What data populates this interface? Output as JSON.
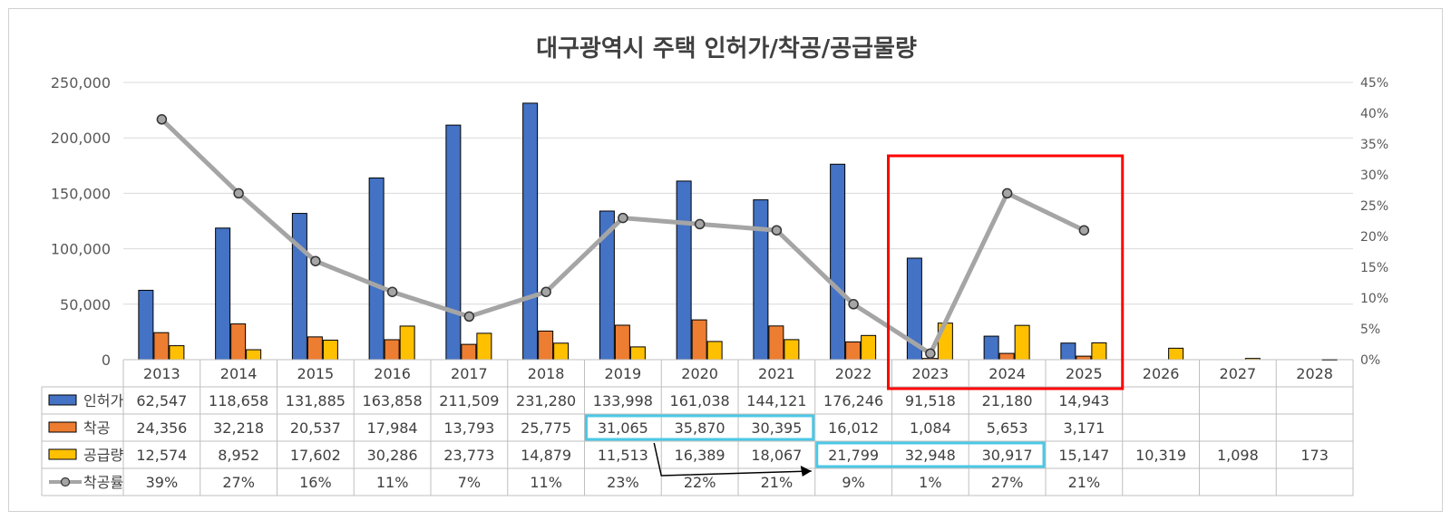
{
  "chart_data": {
    "type": "bar",
    "title": "대구광역시 주택 인허가/착공/공급물량",
    "categories": [
      "2013",
      "2014",
      "2015",
      "2016",
      "2017",
      "2018",
      "2019",
      "2020",
      "2021",
      "2022",
      "2023",
      "2024",
      "2025",
      "2026",
      "2027",
      "2028"
    ],
    "series": [
      {
        "name": "인허가",
        "color": "#4472C4",
        "values": [
          62547,
          118658,
          131885,
          163858,
          211509,
          231280,
          133998,
          161038,
          144121,
          176246,
          91518,
          21180,
          14943,
          null,
          null,
          null
        ],
        "labels": [
          "62,547",
          "118,658",
          "131,885",
          "163,858",
          "211,509",
          "231,280",
          "133,998",
          "161,038",
          "144,121",
          "176,246",
          "91,518",
          "21,180",
          "14,943",
          "",
          "",
          ""
        ]
      },
      {
        "name": "착공",
        "color": "#ED7D31",
        "values": [
          24356,
          32218,
          20537,
          17984,
          13793,
          25775,
          31065,
          35870,
          30395,
          16012,
          1084,
          5653,
          3171,
          null,
          null,
          null
        ],
        "labels": [
          "24,356",
          "32,218",
          "20,537",
          "17,984",
          "13,793",
          "25,775",
          "31,065",
          "35,870",
          "30,395",
          "16,012",
          "1,084",
          "5,653",
          "3,171",
          "",
          "",
          ""
        ]
      },
      {
        "name": "공급량",
        "color": "#FFC000",
        "values": [
          12574,
          8952,
          17602,
          30286,
          23773,
          14879,
          11513,
          16389,
          18067,
          21799,
          32948,
          30917,
          15147,
          10319,
          1098,
          173
        ],
        "labels": [
          "12,574",
          "8,952",
          "17,602",
          "30,286",
          "23,773",
          "14,879",
          "11,513",
          "16,389",
          "18,067",
          "21,799",
          "32,948",
          "30,917",
          "15,147",
          "10,319",
          "1,098",
          "173"
        ]
      },
      {
        "name": "착공률",
        "type": "line",
        "axis": "right",
        "color": "#A5A5A5",
        "values": [
          39,
          27,
          16,
          11,
          7,
          11,
          23,
          22,
          21,
          9,
          1,
          27,
          21,
          null,
          null,
          null
        ],
        "labels": [
          "39%",
          "27%",
          "16%",
          "11%",
          "7%",
          "11%",
          "23%",
          "22%",
          "21%",
          "9%",
          "1%",
          "27%",
          "21%",
          "",
          "",
          ""
        ]
      }
    ],
    "ylim": [
      0,
      250000
    ],
    "y_ticks": [
      "0",
      "50,000",
      "100,000",
      "150,000",
      "200,000",
      "250,000"
    ],
    "y2lim": [
      0,
      45
    ],
    "y2_ticks": [
      "0%",
      "5%",
      "10%",
      "15%",
      "20%",
      "25%",
      "30%",
      "35%",
      "40%",
      "45%"
    ],
    "grid": true,
    "data_table": true
  }
}
